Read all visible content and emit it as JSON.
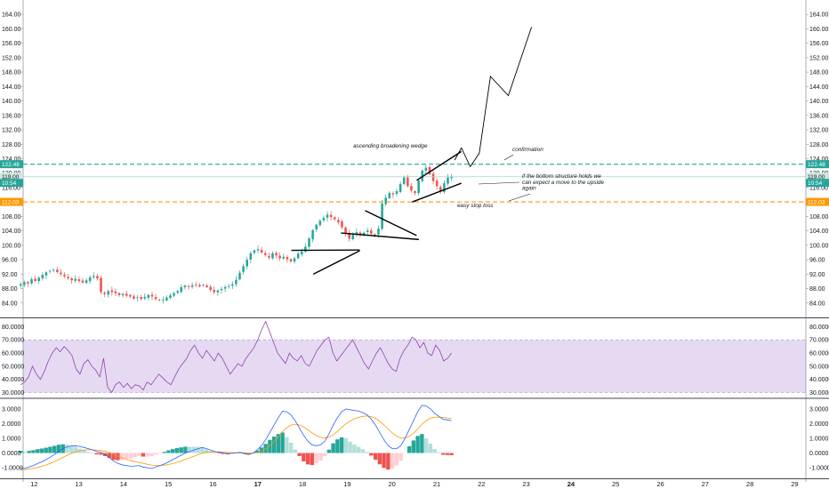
{
  "chart_data": {
    "type": "candlestick",
    "price_pane": {
      "y_ticks": [
        "164.00",
        "160.00",
        "156.00",
        "152.00",
        "148.00",
        "144.00",
        "140.00",
        "136.00",
        "132.00",
        "128.00",
        "124.00",
        "120.00",
        "116.00",
        "112.00",
        "108.00",
        "104.00",
        "100.00",
        "96.00",
        "92.00",
        "88.00",
        "84.00"
      ],
      "ylim": [
        80.5,
        167
      ],
      "badges": [
        {
          "label": "122.48",
          "value": 122.48,
          "color": "#26a69a",
          "text_color": "#ffffff",
          "line": "dashed"
        },
        {
          "label": "119.00",
          "value": 119.0,
          "color": "#cfe8df",
          "text_color": "#131722",
          "line": "solid"
        },
        {
          "label": "10:54",
          "value": 117.3,
          "color": "#26a69a",
          "text_color": "#ffffff",
          "line": "none"
        },
        {
          "label": "112.03",
          "value": 112.03,
          "color": "#ff9800",
          "text_color": "#ffffff",
          "line": "dashed"
        }
      ],
      "annotations": [
        {
          "lines": [
            "ascending broadening wedge"
          ]
        },
        {
          "lines": [
            "confirmation"
          ]
        },
        {
          "lines": [
            "if the bottom structure holds we",
            "can expect a move to the upside",
            "again"
          ]
        },
        {
          "lines": [
            "easy stop loss"
          ]
        }
      ],
      "trendlines": [
        {
          "x1": 17.75,
          "y1": 98.6,
          "x2": 19.28,
          "y2": 98.7
        },
        {
          "x1": 18.24,
          "y1": 92.0,
          "x2": 19.28,
          "y2": 98.5
        },
        {
          "x1": 18.86,
          "y1": 103.4,
          "x2": 20.6,
          "y2": 101.6
        },
        {
          "x1": 19.4,
          "y1": 109.6,
          "x2": 20.55,
          "y2": 102.7
        },
        {
          "x1": 20.45,
          "y1": 112.0,
          "x2": 21.55,
          "y2": 117.2
        },
        {
          "x1": 20.55,
          "y1": 118.0,
          "x2": 21.55,
          "y2": 126.0
        }
      ],
      "projection": [
        [
          21.4,
          123.6
        ],
        [
          21.55,
          127.0
        ],
        [
          21.75,
          121.8
        ],
        [
          21.95,
          125.5
        ],
        [
          22.2,
          146.8
        ],
        [
          22.6,
          141.5
        ],
        [
          23.12,
          160.5
        ]
      ],
      "close_series": [
        89.2,
        89.8,
        89.4,
        90.6,
        90.1,
        91.0,
        91.8,
        92.5,
        92.9,
        93.2,
        92.6,
        92.0,
        91.4,
        90.9,
        90.3,
        90.7,
        90.1,
        89.7,
        90.3,
        91.1,
        91.5,
        90.8,
        87.0,
        86.5,
        87.3,
        87.0,
        86.7,
        86.2,
        86.5,
        86.0,
        85.8,
        85.2,
        85.6,
        85.1,
        85.7,
        86.2,
        85.8,
        85.1,
        84.7,
        84.9,
        85.5,
        86.1,
        86.7,
        87.3,
        88.4,
        88.8,
        88.5,
        88.9,
        89.1,
        88.6,
        89.0,
        88.4,
        87.6,
        87.0,
        87.5,
        87.9,
        88.4,
        88.7,
        89.2,
        90.4,
        92.4,
        94.2,
        96.0,
        97.8,
        98.6,
        98.9,
        98.0,
        97.3,
        96.6,
        97.8,
        97.2,
        96.4,
        96.8,
        96.1,
        95.5,
        96.4,
        97.7,
        98.2,
        99.6,
        101.9,
        104.2,
        105.7,
        106.8,
        107.6,
        108.5,
        107.8,
        107.2,
        106.4,
        105.0,
        103.4,
        101.8,
        102.9,
        103.6,
        102.9,
        103.5,
        104.1,
        103.2,
        102.8,
        104.6,
        111.6,
        113.2,
        114.5,
        114.1,
        115.0,
        117.0,
        118.8,
        116.4,
        115.2,
        114.5,
        118.0,
        120.7,
        121.5,
        119.7,
        117.8,
        116.4,
        115.0,
        117.2,
        118.8,
        119.0
      ],
      "x_start_day": 11.7,
      "x_end_day": 21.33,
      "colors": {
        "up": "#26a69a",
        "down": "#ef5350"
      }
    },
    "rsi_pane": {
      "y_ticks": [
        "80.0000",
        "70.0000",
        "60.0000",
        "50.0000",
        "40.0000",
        "30.0000"
      ],
      "ylim": [
        27,
        85
      ],
      "band": [
        30,
        70
      ],
      "band_color": "#e6daf2",
      "line_color": "#8e44ad",
      "values": [
        36,
        38,
        42,
        50,
        44,
        40,
        46,
        54,
        60,
        64,
        61,
        65,
        62,
        58,
        48,
        44,
        52,
        55,
        50,
        47,
        42,
        56,
        34,
        30,
        36,
        38,
        34,
        37,
        33,
        36,
        35,
        32,
        38,
        36,
        40,
        44,
        41,
        38,
        36,
        42,
        48,
        52,
        56,
        62,
        66,
        60,
        56,
        62,
        58,
        54,
        60,
        56,
        50,
        44,
        48,
        52,
        50,
        56,
        60,
        64,
        70,
        78,
        84,
        76,
        68,
        60,
        56,
        52,
        60,
        56,
        54,
        58,
        52,
        50,
        56,
        62,
        66,
        70,
        72,
        60,
        54,
        58,
        62,
        66,
        70,
        64,
        58,
        52,
        48,
        54,
        60,
        64,
        58,
        52,
        48,
        46,
        56,
        62,
        66,
        72,
        70,
        64,
        68,
        60,
        58,
        66,
        62,
        54,
        56,
        60
      ]
    },
    "macd_pane": {
      "y_ticks": [
        "3.0000",
        "2.0000",
        "1.0000",
        "0.0000",
        "-1.0000"
      ],
      "ylim": [
        -1.6,
        3.6
      ],
      "macd_color": "#2962ff",
      "signal_color": "#ff9800",
      "hist_colors": {
        "pos_up": "#26a69a",
        "pos_down": "#b2dfdb",
        "neg_down": "#ef5350",
        "neg_up": "#ffcdd2"
      },
      "macd_values": [
        -1.0,
        -1.05,
        -0.95,
        -0.85,
        -0.72,
        -0.6,
        -0.45,
        -0.28,
        -0.1,
        0.12,
        0.3,
        0.42,
        0.48,
        0.5,
        0.45,
        0.38,
        0.3,
        0.22,
        0.1,
        0.05,
        -0.1,
        -0.3,
        -0.55,
        -0.7,
        -0.8,
        -0.85,
        -0.9,
        -0.88,
        -0.85,
        -0.95,
        -1.0,
        -1.05,
        -0.95,
        -0.85,
        -0.75,
        -0.6,
        -0.45,
        -0.3,
        -0.15,
        0.0,
        0.1,
        0.2,
        0.3,
        0.38,
        0.3,
        0.2,
        0.1,
        0.05,
        0.0,
        -0.05,
        -0.02,
        0.0,
        0.05,
        -0.05,
        -0.1,
        0.0,
        0.2,
        0.5,
        0.9,
        1.4,
        1.9,
        2.4,
        2.85,
        2.8,
        2.6,
        2.2,
        1.7,
        1.2,
        0.8,
        0.55,
        0.5,
        0.55,
        0.8,
        1.3,
        1.9,
        2.4,
        2.8,
        3.0,
        2.95,
        2.9,
        2.85,
        2.75,
        2.6,
        2.3,
        1.9,
        1.4,
        0.9,
        0.5,
        0.3,
        0.3,
        0.5,
        1.0,
        1.6,
        2.2,
        2.8,
        3.25,
        3.2,
        3.0,
        2.7,
        2.5,
        2.3,
        2.25,
        2.2
      ]
    },
    "x_axis": {
      "ticks": [
        {
          "day": 12,
          "label": "12"
        },
        {
          "day": 13,
          "label": "13"
        },
        {
          "day": 14,
          "label": "14"
        },
        {
          "day": 15,
          "label": "15"
        },
        {
          "day": 16,
          "label": "16"
        },
        {
          "day": 17,
          "label": "17"
        },
        {
          "day": 18,
          "label": "18"
        },
        {
          "day": 19,
          "label": "19"
        },
        {
          "day": 20,
          "label": "20"
        },
        {
          "day": 21,
          "label": "21"
        },
        {
          "day": 22,
          "label": "22"
        },
        {
          "day": 23,
          "label": "23"
        },
        {
          "day": 24,
          "label": "24"
        },
        {
          "day": 25,
          "label": "25"
        },
        {
          "day": 26,
          "label": "26"
        },
        {
          "day": 27,
          "label": "27"
        },
        {
          "day": 28,
          "label": "28"
        },
        {
          "day": 29,
          "label": "29"
        }
      ],
      "bold_days": [
        17,
        24
      ]
    }
  }
}
